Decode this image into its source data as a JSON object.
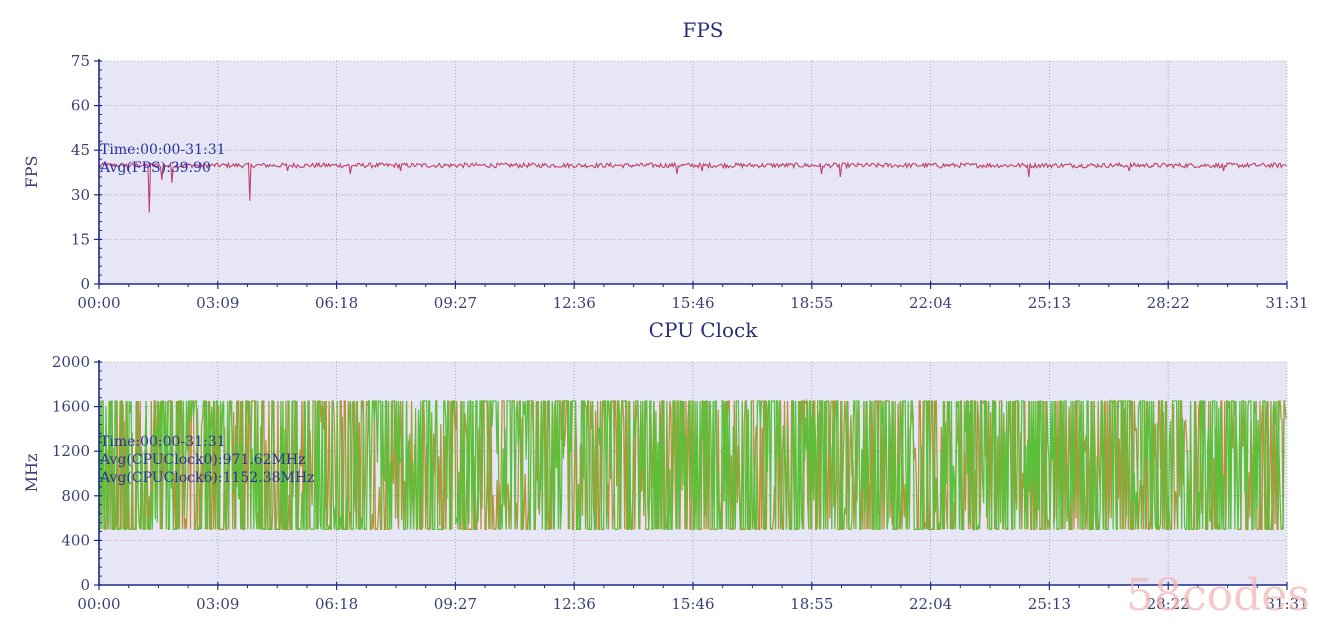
{
  "colors": {
    "plot_bg": "#e6e6f7",
    "axis": "#1d2a8a",
    "grid": "#9a9aa8",
    "fps_line": "#c0406a",
    "cpu0_line": "#b8923a",
    "cpu6_line": "#5cbf3a",
    "ann_text": "#2a31a0"
  },
  "watermark": "58codes",
  "chart_data": [
    {
      "type": "line",
      "title": "FPS",
      "ylabel": "FPS",
      "xlabel": "",
      "ylim": [
        0,
        75
      ],
      "yticks": [
        "0",
        "15",
        "30",
        "45",
        "60",
        "75"
      ],
      "xticks": [
        "00:00",
        "03:09",
        "06:18",
        "09:27",
        "12:36",
        "15:46",
        "18:55",
        "22:04",
        "25:13",
        "28:22",
        "31:31"
      ],
      "x_range_seconds": [
        0,
        1891
      ],
      "grid": true,
      "annotations": [
        "Time:00:00-31:31",
        "Avg(FPS):39.90"
      ],
      "series": [
        {
          "name": "FPS",
          "baseline": 39.9,
          "dips": [
            [
              45,
              38
            ],
            [
              80,
              24
            ],
            [
              100,
              35
            ],
            [
              115,
              34
            ],
            [
              240,
              28
            ],
            [
              300,
              38
            ],
            [
              400,
              37
            ],
            [
              480,
              38
            ],
            [
              920,
              37
            ],
            [
              960,
              38
            ],
            [
              1150,
              37
            ],
            [
              1180,
              36
            ],
            [
              1340,
              39
            ],
            [
              1480,
              36
            ],
            [
              1640,
              38
            ],
            [
              1790,
              38
            ]
          ]
        }
      ]
    },
    {
      "type": "line",
      "title": "CPU Clock",
      "ylabel": "MHz",
      "xlabel": "",
      "ylim": [
        0,
        2000
      ],
      "yticks": [
        "0",
        "400",
        "800",
        "1200",
        "1600",
        "2000"
      ],
      "xticks": [
        "00:00",
        "03:09",
        "06:18",
        "09:27",
        "12:36",
        "15:46",
        "18:55",
        "22:04",
        "25:13",
        "28:22",
        "31:31"
      ],
      "x_range_seconds": [
        0,
        1891
      ],
      "grid": true,
      "annotations": [
        "Time:00:00-31:31",
        "Avg(CPUClock0):971.62MHz",
        "Avg(CPUClock6):1152.38MHz"
      ],
      "series": [
        {
          "name": "CPUClock0",
          "avg": 971.62,
          "min": 500,
          "max": 1650
        },
        {
          "name": "CPUClock6",
          "avg": 1152.38,
          "min": 500,
          "max": 1650
        }
      ]
    }
  ]
}
